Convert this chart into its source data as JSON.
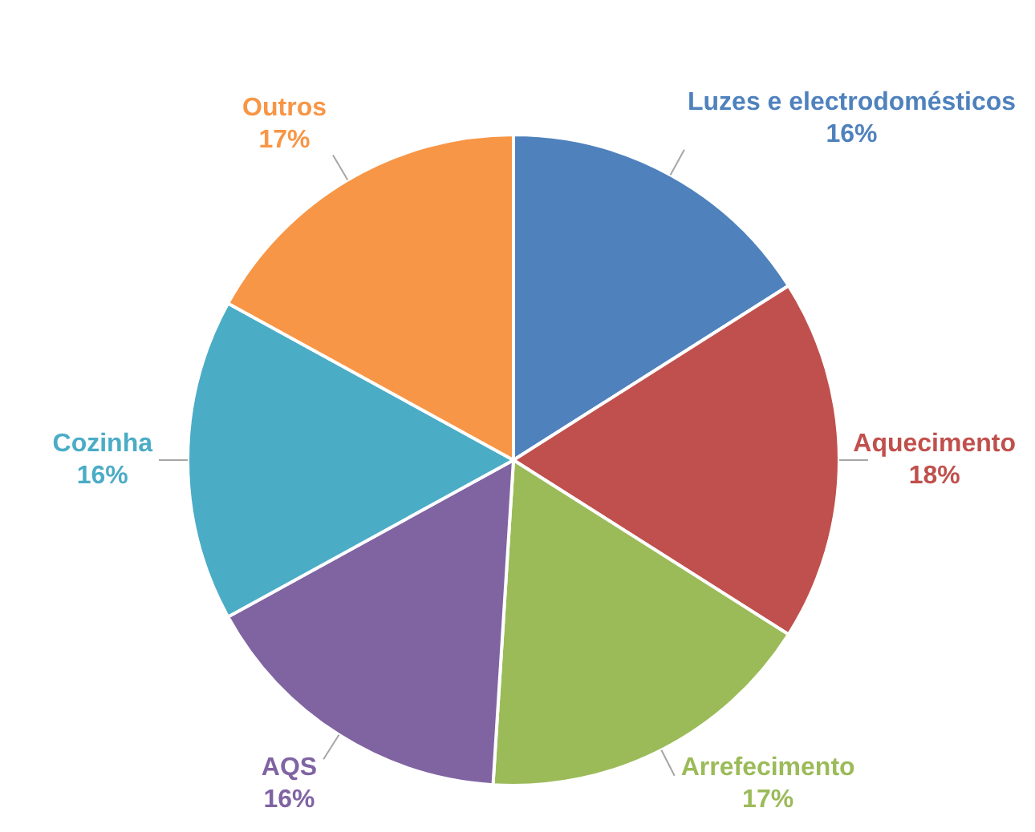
{
  "chart_data": {
    "type": "pie",
    "categories": [
      "Luzes e electrodomésticos",
      "Aquecimento",
      "Arrefecimento",
      "AQS",
      "Cozinha",
      "Outros"
    ],
    "values": [
      16,
      18,
      17,
      16,
      16,
      17
    ],
    "value_labels": [
      "16%",
      "18%",
      "17%",
      "16%",
      "16%",
      "17%"
    ],
    "colors": [
      "#4f81bd",
      "#c0504d",
      "#9bbb59",
      "#8064a2",
      "#4bacc6",
      "#f79646"
    ],
    "legend": false
  }
}
